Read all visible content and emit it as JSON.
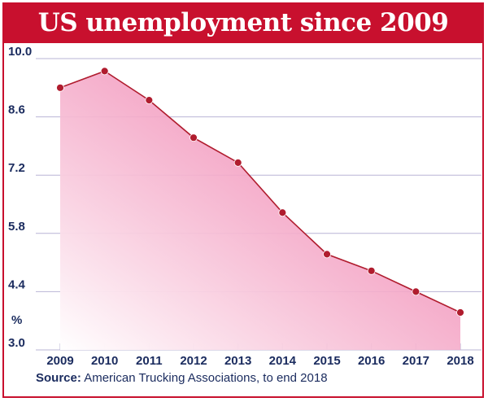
{
  "title": "US unemployment since 2009",
  "source_label": "Source:",
  "source_text": " American Trucking Associations, to end 2018",
  "colors": {
    "accent": "#c8102e",
    "fill": "#f4a6c6",
    "marker": "#b01c2e",
    "grid": "#b9b4d6",
    "text": "#1a2b5e"
  },
  "chart_data": {
    "type": "area",
    "title": "US unemployment since 2009",
    "xlabel": "",
    "ylabel": "%",
    "x": [
      "2009",
      "2010",
      "2011",
      "2012",
      "2013",
      "2014",
      "2015",
      "2016",
      "2017",
      "2018"
    ],
    "values": [
      9.3,
      9.7,
      9.0,
      8.1,
      7.5,
      6.3,
      5.3,
      4.9,
      4.4,
      3.9
    ],
    "ylim": [
      3.0,
      10.0
    ],
    "yticks": [
      "10.0",
      "8.6",
      "7.2",
      "5.8",
      "4.4",
      "3.0"
    ],
    "grid": "horizontal",
    "legend": "none"
  }
}
